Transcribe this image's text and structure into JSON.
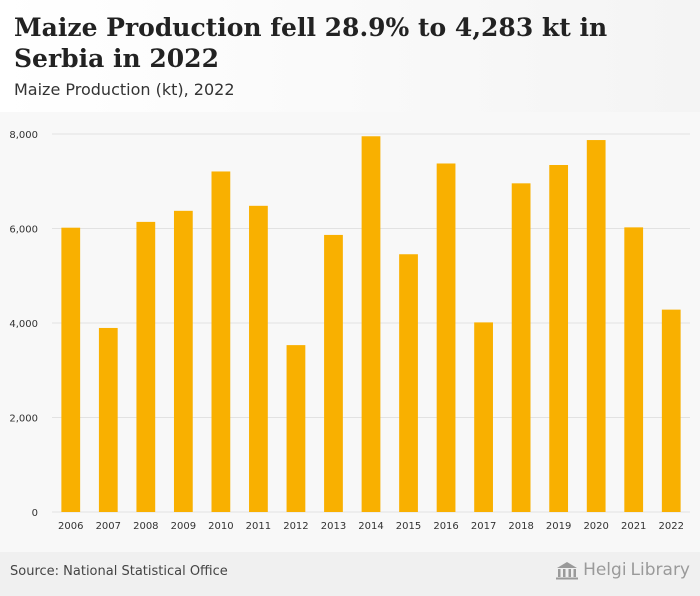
{
  "header": {
    "title": "Maize Production fell 28.9% to 4,283 kt in Serbia in 2022",
    "subtitle": "Maize Production (kt), 2022"
  },
  "footer": {
    "source": "Source: National Statistical Office",
    "brand_part1": "Helgi",
    "brand_part2": "Library",
    "brand_icon": "library-building-icon"
  },
  "colors": {
    "bar": "#f9b000",
    "grid": "#e2e2e2",
    "axis_text": "#333333"
  },
  "chart_data": {
    "type": "bar",
    "title": "Maize Production fell 28.9% to 4,283 kt in Serbia in 2022",
    "subtitle": "Maize Production (kt), 2022",
    "categories": [
      "2006",
      "2007",
      "2008",
      "2009",
      "2010",
      "2011",
      "2012",
      "2013",
      "2014",
      "2015",
      "2016",
      "2017",
      "2018",
      "2019",
      "2020",
      "2021",
      "2022"
    ],
    "values": [
      6017,
      3895,
      6140,
      6374,
      7207,
      6480,
      3532,
      5864,
      7952,
      5455,
      7376,
      4013,
      6956,
      7344,
      7872,
      6024,
      4283
    ],
    "ylim": [
      0,
      8000
    ],
    "yticks": [
      0,
      2000,
      4000,
      6000,
      8000
    ],
    "ytick_labels": [
      "0",
      "2,000",
      "4,000",
      "6,000",
      "8,000"
    ],
    "xlabel": "",
    "ylabel": "",
    "grid": true,
    "legend": "none"
  }
}
